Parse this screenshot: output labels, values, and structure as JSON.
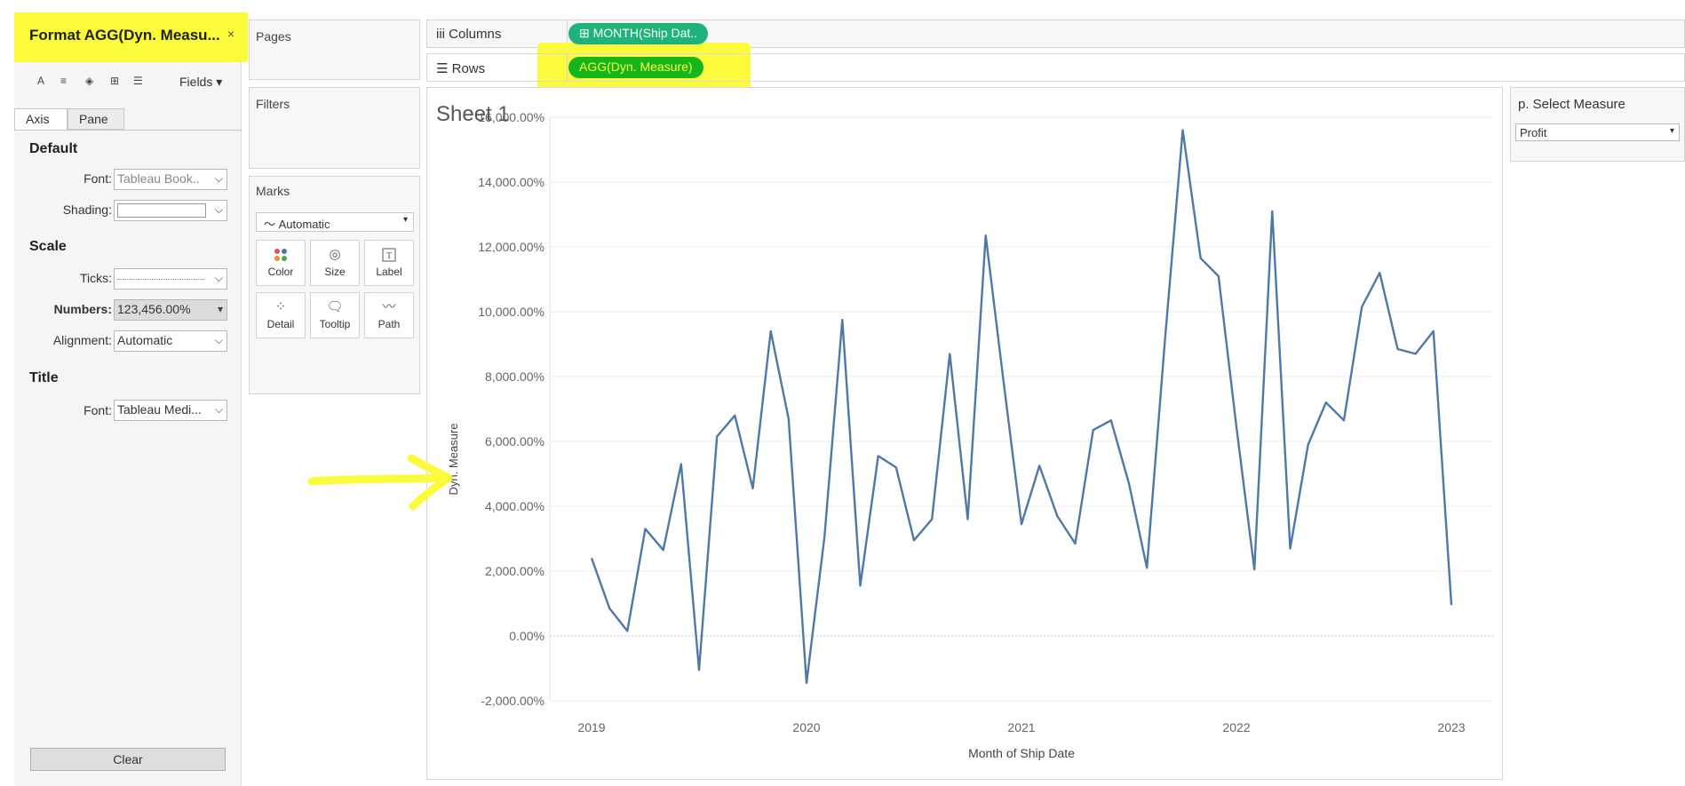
{
  "format_pane": {
    "title": "Format AGG(Dyn. Measu...",
    "close": "×",
    "toolbar": {
      "font": "A",
      "alignment": "≡",
      "shading": "◈",
      "borders": "⊞",
      "lines": "☰",
      "fields": "Fields ▾"
    },
    "tabs": [
      "Axis",
      "Pane"
    ],
    "default": {
      "heading": "Default",
      "font_label": "Font:",
      "font_value": "Tableau Book..",
      "shading_label": "Shading:",
      "shading_value": ""
    },
    "scale": {
      "heading": "Scale",
      "ticks_label": "Ticks:",
      "ticks_value": "",
      "numbers_label": "Numbers:",
      "numbers_value": "123,456.00%",
      "alignment_label": "Alignment:",
      "alignment_value": "Automatic"
    },
    "title_section": {
      "heading": "Title",
      "font_label": "Font:",
      "font_value": "Tableau Medi..."
    },
    "clear_label": "Clear"
  },
  "cards": {
    "pages": "Pages",
    "filters": "Filters",
    "marks": {
      "title": "Marks",
      "mark_type": "Automatic",
      "buttons": [
        "Color",
        "Size",
        "Label",
        "Detail",
        "Tooltip",
        "Path"
      ]
    }
  },
  "shelves": {
    "columns_label": "Columns",
    "columns_pill": "MONTH(Ship Dat..",
    "rows_label": "Rows",
    "rows_pill": "AGG(Dyn. Measure)"
  },
  "sheet": {
    "title": "Sheet 1"
  },
  "parameter": {
    "title": "p. Select Measure",
    "value": "Profit"
  },
  "colors": {
    "line": "#4e79a7",
    "highlight": "#fbfb3c",
    "pill": "#1db37b",
    "pill_active": "#16b51c"
  },
  "chart_data": {
    "type": "line",
    "title": "",
    "xlabel": "Month of Ship Date",
    "ylabel": "Dyn. Measure",
    "ylim": [
      -2000,
      16000
    ],
    "yticks": [
      16000,
      14000,
      12000,
      10000,
      8000,
      6000,
      4000,
      2000,
      0,
      -2000
    ],
    "ytick_labels": [
      "16,000.00%",
      "14,000.00%",
      "12,000.00%",
      "10,000.00%",
      "8,000.00%",
      "6,000.00%",
      "4,000.00%",
      "2,000.00%",
      "0.00%",
      "-2,000.00%"
    ],
    "xticks": [
      "2019",
      "2020",
      "2021",
      "2022",
      "2023"
    ],
    "x_start": "2019-01",
    "series": [
      {
        "values": [
          2400,
          850,
          150,
          3300,
          2650,
          5300,
          -1050,
          6150,
          6800,
          4550,
          9400,
          6700,
          -1450,
          3050,
          9750,
          1550,
          5550,
          5200,
          2950,
          3600,
          8700,
          3600,
          12350,
          7850,
          3450,
          5250,
          3700,
          2850,
          6350,
          6650,
          4700,
          2100,
          9050,
          15600,
          11650,
          11100,
          6450,
          2050,
          13100,
          2700,
          5900,
          7200,
          6650,
          10150,
          11200,
          8850,
          8700,
          9400,
          950
        ]
      }
    ]
  }
}
